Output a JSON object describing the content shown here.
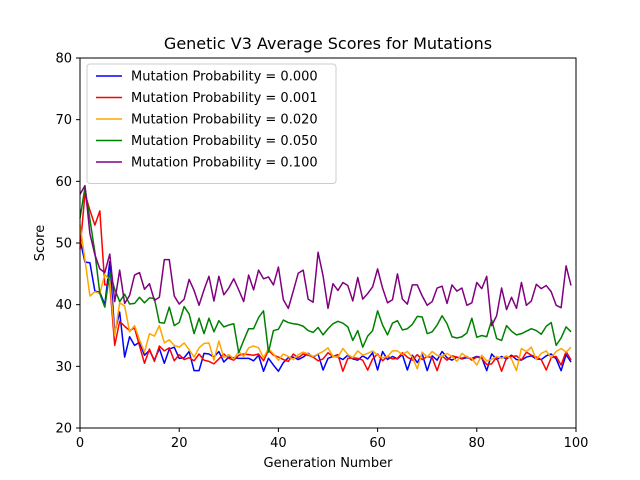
{
  "chart_data": {
    "type": "line",
    "title": "Genetic V3 Average Scores for Mutations",
    "xlabel": "Generation Number",
    "ylabel": "Score",
    "xlim": [
      0,
      100
    ],
    "ylim": [
      20,
      80
    ],
    "xticks": [
      0,
      20,
      40,
      60,
      80,
      100
    ],
    "yticks": [
      20,
      30,
      40,
      50,
      60,
      70,
      80
    ],
    "grid": false,
    "legend_position": "top-left",
    "x": [
      0,
      1,
      2,
      3,
      4,
      5,
      6,
      7,
      8,
      9,
      10,
      11,
      12,
      13,
      14,
      15,
      16,
      17,
      18,
      19,
      20,
      21,
      22,
      23,
      24,
      25,
      26,
      27,
      28,
      29,
      30,
      31,
      32,
      33,
      34,
      35,
      36,
      37,
      38,
      39,
      40,
      41,
      42,
      43,
      44,
      45,
      46,
      47,
      48,
      49,
      50,
      51,
      52,
      53,
      54,
      55,
      56,
      57,
      58,
      59,
      60,
      61,
      62,
      63,
      64,
      65,
      66,
      67,
      68,
      69,
      70,
      71,
      72,
      73,
      74,
      75,
      76,
      77,
      78,
      79,
      80,
      81,
      82,
      83,
      84,
      85,
      86,
      87,
      88,
      89,
      90,
      91,
      92,
      93,
      94,
      95,
      96,
      97,
      98,
      99
    ],
    "series": [
      {
        "name": "Mutation Probability = 0.000",
        "color": "#0000ff",
        "values": [
          50.5,
          46.9,
          46.8,
          42.2,
          42.0,
          40.0,
          47.0,
          35.5,
          38.8,
          31.5,
          34.8,
          33.4,
          33.9,
          31.8,
          32.6,
          31.0,
          32.9,
          30.5,
          32.8,
          33.1,
          31.3,
          31.4,
          32.4,
          29.3,
          29.3,
          32.1,
          32.0,
          31.5,
          32.4,
          30.7,
          31.5,
          31.4,
          31.3,
          31.3,
          31.3,
          30.9,
          31.8,
          29.2,
          31.3,
          30.2,
          29.2,
          30.6,
          31.4,
          31.5,
          31.1,
          31.5,
          32.1,
          31.5,
          32.0,
          29.4,
          31.3,
          31.6,
          31.5,
          31.1,
          31.8,
          31.2,
          31.0,
          31.7,
          31.2,
          32.2,
          29.4,
          32.4,
          31.1,
          31.6,
          31.2,
          31.9,
          29.4,
          31.8,
          30.6,
          32.0,
          29.3,
          31.7,
          31.0,
          32.4,
          31.4,
          31.0,
          31.5,
          31.2,
          31.4,
          31.3,
          31.6,
          31.4,
          29.3,
          32.0,
          31.1,
          31.6,
          31.2,
          31.8,
          31.1,
          31.0,
          31.5,
          31.7,
          31.2,
          31.1,
          31.7,
          32.0,
          31.2,
          29.3,
          31.9,
          30.7
        ]
      },
      {
        "name": "Mutation Probability = 0.001",
        "color": "#ff0000",
        "values": [
          49.0,
          58.0,
          55.3,
          52.9,
          55.2,
          43.2,
          43.4,
          33.4,
          37.3,
          36.5,
          35.8,
          36.2,
          33.3,
          30.5,
          32.8,
          30.8,
          33.3,
          32.5,
          33.0,
          30.9,
          31.9,
          31.1,
          31.4,
          30.9,
          32.0,
          31.0,
          30.8,
          30.4,
          31.2,
          32.0,
          31.3,
          31.0,
          31.8,
          32.0,
          31.9,
          31.8,
          32.0,
          30.9,
          32.6,
          31.8,
          31.5,
          31.1,
          30.8,
          32.0,
          31.4,
          32.0,
          31.8,
          31.5,
          30.9,
          31.2,
          32.2,
          31.6,
          31.9,
          29.2,
          31.3,
          31.4,
          31.3,
          31.0,
          29.4,
          31.2,
          32.0,
          30.9,
          31.6,
          31.2,
          31.3,
          32.2,
          31.5,
          31.0,
          31.9,
          31.1,
          31.6,
          31.4,
          29.3,
          31.7,
          31.0,
          31.7,
          31.5,
          31.3,
          31.6,
          31.0,
          31.5,
          31.3,
          30.3,
          30.4,
          31.5,
          29.2,
          31.4,
          31.6,
          31.7,
          31.0,
          32.3,
          31.8,
          31.5,
          31.1,
          29.4,
          31.4,
          31.6,
          30.2,
          32.4,
          31.0
        ]
      },
      {
        "name": "Mutation Probability = 0.020",
        "color": "#ffa500",
        "values": [
          53.0,
          47.3,
          41.4,
          42.1,
          41.8,
          44.9,
          44.0,
          35.0,
          40.3,
          39.8,
          35.6,
          36.6,
          34.3,
          32.3,
          35.3,
          34.9,
          36.6,
          33.8,
          34.3,
          33.4,
          33.1,
          33.8,
          32.7,
          31.5,
          33.0,
          33.7,
          33.8,
          31.0,
          34.1,
          31.4,
          31.9,
          31.2,
          32.4,
          31.6,
          33.0,
          33.3,
          33.0,
          31.4,
          32.9,
          32.0,
          31.0,
          32.0,
          31.6,
          31.1,
          31.9,
          32.3,
          32.0,
          31.6,
          32.0,
          32.4,
          33.0,
          31.6,
          31.5,
          32.9,
          31.9,
          31.4,
          32.5,
          31.8,
          32.1,
          32.5,
          31.8,
          31.4,
          31.6,
          32.5,
          32.5,
          31.9,
          32.4,
          31.5,
          29.6,
          32.3,
          31.5,
          32.4,
          31.8,
          31.6,
          32.1,
          31.6,
          30.8,
          32.1,
          31.5,
          31.3,
          30.2,
          31.8,
          30.9,
          31.1,
          31.6,
          31.3,
          31.7,
          31.2,
          29.3,
          32.9,
          32.4,
          33.1,
          31.1,
          32.1,
          32.5,
          31.4,
          32.4,
          32.9,
          32.3,
          33.1
        ]
      },
      {
        "name": "Mutation Probability = 0.050",
        "color": "#008000",
        "values": [
          54.0,
          59.0,
          53.8,
          48.5,
          41.8,
          39.6,
          45.2,
          42.5,
          40.5,
          41.7,
          40.1,
          40.2,
          41.2,
          40.3,
          41.1,
          41.0,
          37.1,
          37.0,
          39.6,
          36.6,
          37.1,
          39.7,
          38.5,
          35.3,
          37.8,
          35.3,
          37.8,
          35.6,
          37.4,
          36.4,
          36.7,
          36.9,
          32.2,
          34.2,
          36.1,
          36.1,
          37.9,
          39.0,
          32.3,
          35.8,
          36.0,
          37.5,
          37.1,
          36.9,
          36.8,
          36.5,
          35.8,
          35.5,
          36.3,
          35.1,
          36.1,
          36.9,
          37.3,
          37.0,
          36.4,
          34.2,
          35.8,
          33.1,
          34.9,
          35.8,
          39.0,
          36.7,
          35.1,
          37.0,
          37.4,
          35.9,
          36.1,
          36.8,
          38.1,
          38.0,
          35.3,
          35.6,
          36.7,
          38.2,
          36.9,
          34.8,
          34.6,
          34.8,
          35.4,
          37.8,
          34.7,
          35.0,
          34.8,
          37.5,
          34.5,
          34.2,
          36.6,
          35.7,
          35.1,
          35.3,
          35.7,
          36.1,
          35.8,
          35.2,
          36.5,
          37.1,
          33.4,
          34.6,
          36.4,
          35.6
        ]
      },
      {
        "name": "Mutation Probability = 0.100",
        "color": "#800080",
        "values": [
          57.9,
          59.3,
          51.5,
          48.1,
          45.8,
          45.2,
          48.2,
          40.5,
          45.6,
          40.2,
          41.5,
          44.8,
          45.2,
          42.5,
          43.4,
          40.7,
          41.2,
          47.3,
          47.3,
          41.4,
          40.1,
          40.9,
          44.1,
          42.3,
          39.9,
          42.4,
          44.6,
          40.6,
          44.6,
          41.6,
          42.7,
          44.2,
          42.4,
          40.5,
          44.8,
          42.4,
          45.6,
          44.2,
          44.5,
          43.2,
          46.1,
          40.8,
          39.4,
          42.2,
          45.1,
          45.6,
          40.9,
          40.4,
          48.5,
          44.7,
          39.4,
          43.4,
          42.3,
          43.6,
          43.1,
          40.6,
          44.4,
          40.9,
          41.8,
          42.9,
          45.8,
          42.7,
          40.3,
          40.8,
          45.0,
          40.9,
          40.1,
          43.2,
          43.2,
          41.4,
          39.9,
          40.5,
          42.7,
          43.0,
          40.2,
          43.2,
          42.2,
          42.7,
          39.9,
          40.3,
          43.6,
          42.6,
          44.6,
          36.6,
          38.2,
          42.7,
          39.2,
          41.2,
          39.4,
          43.6,
          39.9,
          40.6,
          43.3,
          42.6,
          43.1,
          42.1,
          39.9,
          39.5,
          46.3,
          43.1
        ]
      }
    ]
  }
}
